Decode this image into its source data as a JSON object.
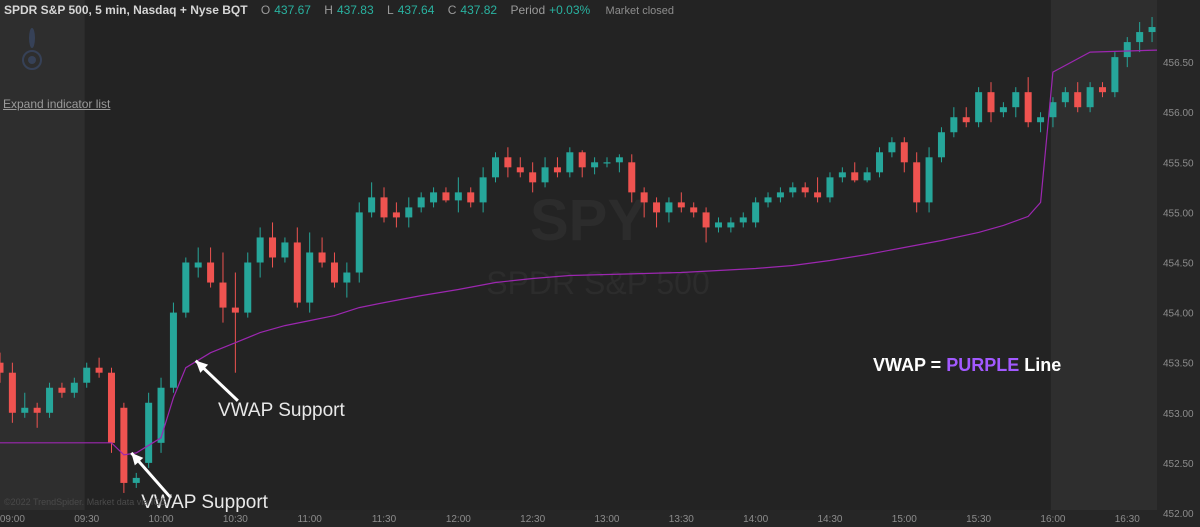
{
  "header": {
    "symbol": "SPDR S&P 500, 5 min, Nasdaq + Nyse BQT",
    "open_label": "O",
    "open": "437.67",
    "high_label": "H",
    "high": "437.83",
    "low_label": "L",
    "low": "437.64",
    "close_label": "C",
    "close": "437.82",
    "period_label": "Period",
    "period": "+0.03%",
    "status": "Market closed"
  },
  "sidebar": {
    "expand_label": "Expand indicator list"
  },
  "footer": {
    "credit": "©2022 TrendSpider. Market data via ICE"
  },
  "colors": {
    "up": "#26a69a",
    "down": "#ef5350",
    "vwap": "#9c27b0",
    "session_shade": "#2e2e2e",
    "background": "#232323"
  },
  "chart_data": {
    "type": "candlestick",
    "watermark": {
      "ticker": "SPY",
      "name": "SPDR S&P 500"
    },
    "y_ticks": [
      "452.00",
      "452.50",
      "453.00",
      "453.50",
      "454.00",
      "454.50",
      "455.00",
      "455.50",
      "456.00",
      "456.50"
    ],
    "ylim": [
      451.86,
      457.12
    ],
    "x_ticks": [
      "09:00",
      "09:30",
      "10:00",
      "10:30",
      "11:00",
      "11:30",
      "12:00",
      "12:30",
      "13:00",
      "13:30",
      "14:00",
      "14:30",
      "15:00",
      "15:30",
      "16:00",
      "16:30"
    ],
    "xlim": [
      "08:55",
      "16:42"
    ],
    "regular_session": [
      "09:30",
      "16:00"
    ],
    "candles": [
      {
        "t": "08:55",
        "o": 453.5,
        "h": 453.6,
        "l": 453.3,
        "c": 453.4
      },
      {
        "t": "09:00",
        "o": 453.4,
        "h": 453.5,
        "l": 452.9,
        "c": 453.0
      },
      {
        "t": "09:05",
        "o": 453.0,
        "h": 453.2,
        "l": 452.95,
        "c": 453.05
      },
      {
        "t": "09:10",
        "o": 453.05,
        "h": 453.1,
        "l": 452.85,
        "c": 453.0
      },
      {
        "t": "09:15",
        "o": 453.0,
        "h": 453.3,
        "l": 452.95,
        "c": 453.25
      },
      {
        "t": "09:20",
        "o": 453.25,
        "h": 453.3,
        "l": 453.15,
        "c": 453.2
      },
      {
        "t": "09:25",
        "o": 453.2,
        "h": 453.35,
        "l": 453.15,
        "c": 453.3
      },
      {
        "t": "09:30",
        "o": 453.3,
        "h": 453.5,
        "l": 453.25,
        "c": 453.45
      },
      {
        "t": "09:35",
        "o": 453.45,
        "h": 453.55,
        "l": 453.35,
        "c": 453.4
      },
      {
        "t": "09:40",
        "o": 453.4,
        "h": 453.45,
        "l": 452.6,
        "c": 452.7
      },
      {
        "t": "09:45",
        "o": 453.05,
        "h": 453.1,
        "l": 452.2,
        "c": 452.3
      },
      {
        "t": "09:50",
        "o": 452.3,
        "h": 452.4,
        "l": 452.25,
        "c": 452.35
      },
      {
        "t": "09:55",
        "o": 452.5,
        "h": 453.2,
        "l": 452.45,
        "c": 453.1
      },
      {
        "t": "10:00",
        "o": 452.7,
        "h": 453.35,
        "l": 452.6,
        "c": 453.25
      },
      {
        "t": "10:05",
        "o": 453.25,
        "h": 454.1,
        "l": 453.2,
        "c": 454.0
      },
      {
        "t": "10:10",
        "o": 454.0,
        "h": 454.55,
        "l": 453.95,
        "c": 454.5
      },
      {
        "t": "10:15",
        "o": 454.45,
        "h": 454.65,
        "l": 454.35,
        "c": 454.5
      },
      {
        "t": "10:20",
        "o": 454.5,
        "h": 454.65,
        "l": 454.25,
        "c": 454.3
      },
      {
        "t": "10:25",
        "o": 454.3,
        "h": 454.6,
        "l": 453.9,
        "c": 454.05
      },
      {
        "t": "10:30",
        "o": 454.05,
        "h": 454.4,
        "l": 453.4,
        "c": 454.0
      },
      {
        "t": "10:35",
        "o": 454.0,
        "h": 454.6,
        "l": 453.95,
        "c": 454.5
      },
      {
        "t": "10:40",
        "o": 454.5,
        "h": 454.85,
        "l": 454.35,
        "c": 454.75
      },
      {
        "t": "10:45",
        "o": 454.75,
        "h": 454.9,
        "l": 454.45,
        "c": 454.55
      },
      {
        "t": "10:50",
        "o": 454.55,
        "h": 454.75,
        "l": 454.5,
        "c": 454.7
      },
      {
        "t": "10:55",
        "o": 454.7,
        "h": 454.85,
        "l": 454.05,
        "c": 454.1
      },
      {
        "t": "11:00",
        "o": 454.1,
        "h": 454.8,
        "l": 454.0,
        "c": 454.6
      },
      {
        "t": "11:05",
        "o": 454.6,
        "h": 454.75,
        "l": 454.45,
        "c": 454.5
      },
      {
        "t": "11:10",
        "o": 454.5,
        "h": 454.6,
        "l": 454.25,
        "c": 454.3
      },
      {
        "t": "11:15",
        "o": 454.3,
        "h": 454.5,
        "l": 454.15,
        "c": 454.4
      },
      {
        "t": "11:20",
        "o": 454.4,
        "h": 455.1,
        "l": 454.3,
        "c": 455.0
      },
      {
        "t": "11:25",
        "o": 455.0,
        "h": 455.3,
        "l": 454.95,
        "c": 455.15
      },
      {
        "t": "11:30",
        "o": 455.15,
        "h": 455.25,
        "l": 454.9,
        "c": 454.95
      },
      {
        "t": "11:35",
        "o": 455.0,
        "h": 455.1,
        "l": 454.85,
        "c": 454.95
      },
      {
        "t": "11:40",
        "o": 454.95,
        "h": 455.15,
        "l": 454.85,
        "c": 455.05
      },
      {
        "t": "11:45",
        "o": 455.05,
        "h": 455.2,
        "l": 455.0,
        "c": 455.15
      },
      {
        "t": "11:50",
        "o": 455.1,
        "h": 455.25,
        "l": 455.05,
        "c": 455.2
      },
      {
        "t": "11:55",
        "o": 455.2,
        "h": 455.25,
        "l": 455.1,
        "c": 455.12
      },
      {
        "t": "12:00",
        "o": 455.12,
        "h": 455.35,
        "l": 455.0,
        "c": 455.2
      },
      {
        "t": "12:05",
        "o": 455.2,
        "h": 455.25,
        "l": 455.05,
        "c": 455.1
      },
      {
        "t": "12:10",
        "o": 455.1,
        "h": 455.45,
        "l": 455.0,
        "c": 455.35
      },
      {
        "t": "12:15",
        "o": 455.35,
        "h": 455.6,
        "l": 455.3,
        "c": 455.55
      },
      {
        "t": "12:20",
        "o": 455.55,
        "h": 455.65,
        "l": 455.35,
        "c": 455.45
      },
      {
        "t": "12:25",
        "o": 455.45,
        "h": 455.55,
        "l": 455.35,
        "c": 455.4
      },
      {
        "t": "12:30",
        "o": 455.4,
        "h": 455.5,
        "l": 455.2,
        "c": 455.3
      },
      {
        "t": "12:35",
        "o": 455.3,
        "h": 455.55,
        "l": 455.25,
        "c": 455.45
      },
      {
        "t": "12:40",
        "o": 455.45,
        "h": 455.55,
        "l": 455.35,
        "c": 455.4
      },
      {
        "t": "12:45",
        "o": 455.4,
        "h": 455.65,
        "l": 455.35,
        "c": 455.6
      },
      {
        "t": "12:50",
        "o": 455.6,
        "h": 455.62,
        "l": 455.35,
        "c": 455.45
      },
      {
        "t": "12:55",
        "o": 455.45,
        "h": 455.55,
        "l": 455.38,
        "c": 455.5
      },
      {
        "t": "13:00",
        "o": 455.5,
        "h": 455.55,
        "l": 455.45,
        "c": 455.5
      },
      {
        "t": "13:05",
        "o": 455.5,
        "h": 455.58,
        "l": 455.4,
        "c": 455.55
      },
      {
        "t": "13:10",
        "o": 455.5,
        "h": 455.58,
        "l": 455.1,
        "c": 455.2
      },
      {
        "t": "13:15",
        "o": 455.2,
        "h": 455.25,
        "l": 454.95,
        "c": 455.1
      },
      {
        "t": "13:20",
        "o": 455.1,
        "h": 455.15,
        "l": 454.85,
        "c": 455.0
      },
      {
        "t": "13:25",
        "o": 455.0,
        "h": 455.15,
        "l": 454.9,
        "c": 455.1
      },
      {
        "t": "13:30",
        "o": 455.1,
        "h": 455.2,
        "l": 455.0,
        "c": 455.05
      },
      {
        "t": "13:35",
        "o": 455.05,
        "h": 455.1,
        "l": 454.95,
        "c": 455.0
      },
      {
        "t": "13:40",
        "o": 455.0,
        "h": 455.05,
        "l": 454.7,
        "c": 454.85
      },
      {
        "t": "13:45",
        "o": 454.85,
        "h": 454.95,
        "l": 454.8,
        "c": 454.9
      },
      {
        "t": "13:50",
        "o": 454.85,
        "h": 454.95,
        "l": 454.8,
        "c": 454.9
      },
      {
        "t": "13:55",
        "o": 454.9,
        "h": 455.0,
        "l": 454.85,
        "c": 454.95
      },
      {
        "t": "14:00",
        "o": 454.9,
        "h": 455.15,
        "l": 454.85,
        "c": 455.1
      },
      {
        "t": "14:05",
        "o": 455.1,
        "h": 455.2,
        "l": 455.05,
        "c": 455.15
      },
      {
        "t": "14:10",
        "o": 455.15,
        "h": 455.25,
        "l": 455.1,
        "c": 455.2
      },
      {
        "t": "14:15",
        "o": 455.2,
        "h": 455.3,
        "l": 455.15,
        "c": 455.25
      },
      {
        "t": "14:20",
        "o": 455.25,
        "h": 455.3,
        "l": 455.15,
        "c": 455.2
      },
      {
        "t": "14:25",
        "o": 455.2,
        "h": 455.35,
        "l": 455.1,
        "c": 455.15
      },
      {
        "t": "14:30",
        "o": 455.15,
        "h": 455.4,
        "l": 455.1,
        "c": 455.35
      },
      {
        "t": "14:35",
        "o": 455.35,
        "h": 455.45,
        "l": 455.3,
        "c": 455.4
      },
      {
        "t": "14:40",
        "o": 455.4,
        "h": 455.5,
        "l": 455.3,
        "c": 455.32
      },
      {
        "t": "14:45",
        "o": 455.32,
        "h": 455.45,
        "l": 455.3,
        "c": 455.4
      },
      {
        "t": "14:50",
        "o": 455.4,
        "h": 455.65,
        "l": 455.35,
        "c": 455.6
      },
      {
        "t": "14:55",
        "o": 455.6,
        "h": 455.75,
        "l": 455.55,
        "c": 455.7
      },
      {
        "t": "15:00",
        "o": 455.7,
        "h": 455.75,
        "l": 455.4,
        "c": 455.5
      },
      {
        "t": "15:05",
        "o": 455.5,
        "h": 455.6,
        "l": 455.0,
        "c": 455.1
      },
      {
        "t": "15:10",
        "o": 455.1,
        "h": 455.65,
        "l": 455.0,
        "c": 455.55
      },
      {
        "t": "15:15",
        "o": 455.55,
        "h": 455.85,
        "l": 455.5,
        "c": 455.8
      },
      {
        "t": "15:20",
        "o": 455.8,
        "h": 456.05,
        "l": 455.75,
        "c": 455.95
      },
      {
        "t": "15:25",
        "o": 455.95,
        "h": 456.05,
        "l": 455.85,
        "c": 455.9
      },
      {
        "t": "15:30",
        "o": 455.9,
        "h": 456.25,
        "l": 455.85,
        "c": 456.2
      },
      {
        "t": "15:35",
        "o": 456.2,
        "h": 456.3,
        "l": 455.9,
        "c": 456.0
      },
      {
        "t": "15:40",
        "o": 456.0,
        "h": 456.1,
        "l": 455.95,
        "c": 456.05
      },
      {
        "t": "15:45",
        "o": 456.05,
        "h": 456.25,
        "l": 455.95,
        "c": 456.2
      },
      {
        "t": "15:50",
        "o": 456.2,
        "h": 456.35,
        "l": 455.85,
        "c": 455.9
      },
      {
        "t": "15:55",
        "o": 455.9,
        "h": 456.0,
        "l": 455.8,
        "c": 455.95
      },
      {
        "t": "16:00",
        "o": 455.95,
        "h": 456.15,
        "l": 455.85,
        "c": 456.1
      },
      {
        "t": "16:05",
        "o": 456.1,
        "h": 456.25,
        "l": 456.05,
        "c": 456.2
      },
      {
        "t": "16:10",
        "o": 456.2,
        "h": 456.3,
        "l": 456.0,
        "c": 456.05
      },
      {
        "t": "16:15",
        "o": 456.05,
        "h": 456.3,
        "l": 456.0,
        "c": 456.25
      },
      {
        "t": "16:20",
        "o": 456.25,
        "h": 456.3,
        "l": 456.15,
        "c": 456.2
      },
      {
        "t": "16:25",
        "o": 456.2,
        "h": 456.6,
        "l": 456.15,
        "c": 456.55
      },
      {
        "t": "16:30",
        "o": 456.55,
        "h": 456.75,
        "l": 456.45,
        "c": 456.7
      },
      {
        "t": "16:35",
        "o": 456.7,
        "h": 456.9,
        "l": 456.6,
        "c": 456.8
      },
      {
        "t": "16:40",
        "o": 456.8,
        "h": 456.95,
        "l": 456.7,
        "c": 456.85
      }
    ],
    "vwap": [
      {
        "t": "08:55",
        "v": 452.7
      },
      {
        "t": "09:40",
        "v": 452.7
      },
      {
        "t": "09:45",
        "v": 452.58
      },
      {
        "t": "09:50",
        "v": 452.6
      },
      {
        "t": "10:00",
        "v": 452.75
      },
      {
        "t": "10:05",
        "v": 453.15
      },
      {
        "t": "10:10",
        "v": 453.45
      },
      {
        "t": "10:20",
        "v": 453.6
      },
      {
        "t": "10:30",
        "v": 453.7
      },
      {
        "t": "10:40",
        "v": 453.8
      },
      {
        "t": "10:50",
        "v": 453.87
      },
      {
        "t": "11:00",
        "v": 453.92
      },
      {
        "t": "11:10",
        "v": 453.97
      },
      {
        "t": "11:20",
        "v": 454.05
      },
      {
        "t": "11:30",
        "v": 454.1
      },
      {
        "t": "11:45",
        "v": 454.17
      },
      {
        "t": "12:00",
        "v": 454.23
      },
      {
        "t": "12:15",
        "v": 454.3
      },
      {
        "t": "12:30",
        "v": 454.34
      },
      {
        "t": "12:45",
        "v": 454.37
      },
      {
        "t": "13:00",
        "v": 454.38
      },
      {
        "t": "13:15",
        "v": 454.39
      },
      {
        "t": "13:30",
        "v": 454.4
      },
      {
        "t": "14:00",
        "v": 454.44
      },
      {
        "t": "14:15",
        "v": 454.47
      },
      {
        "t": "14:30",
        "v": 454.52
      },
      {
        "t": "14:45",
        "v": 454.58
      },
      {
        "t": "15:00",
        "v": 454.65
      },
      {
        "t": "15:15",
        "v": 454.72
      },
      {
        "t": "15:30",
        "v": 454.8
      },
      {
        "t": "15:40",
        "v": 454.87
      },
      {
        "t": "15:50",
        "v": 454.96
      },
      {
        "t": "15:55",
        "v": 455.1
      },
      {
        "t": "16:00",
        "v": 456.4
      },
      {
        "t": "16:15",
        "v": 456.6
      },
      {
        "t": "16:42",
        "v": 456.62
      }
    ],
    "annotations": [
      {
        "text": "VWAP Support",
        "tip": {
          "t": "09:48",
          "y": 452.6
        },
        "tail": {
          "t": "10:04",
          "y": 452.15
        },
        "label_at": {
          "t": "09:52",
          "y": 452.05
        }
      },
      {
        "text": "VWAP Support",
        "tip": {
          "t": "10:14",
          "y": 453.52
        },
        "tail": {
          "t": "10:31",
          "y": 453.12
        },
        "label_at": {
          "t": "10:23",
          "y": 452.97
        }
      }
    ],
    "legend": {
      "prefix": "VWAP = ",
      "highlight": "PURPLE",
      "suffix": " Line",
      "highlight_color": "#a259ff"
    }
  }
}
